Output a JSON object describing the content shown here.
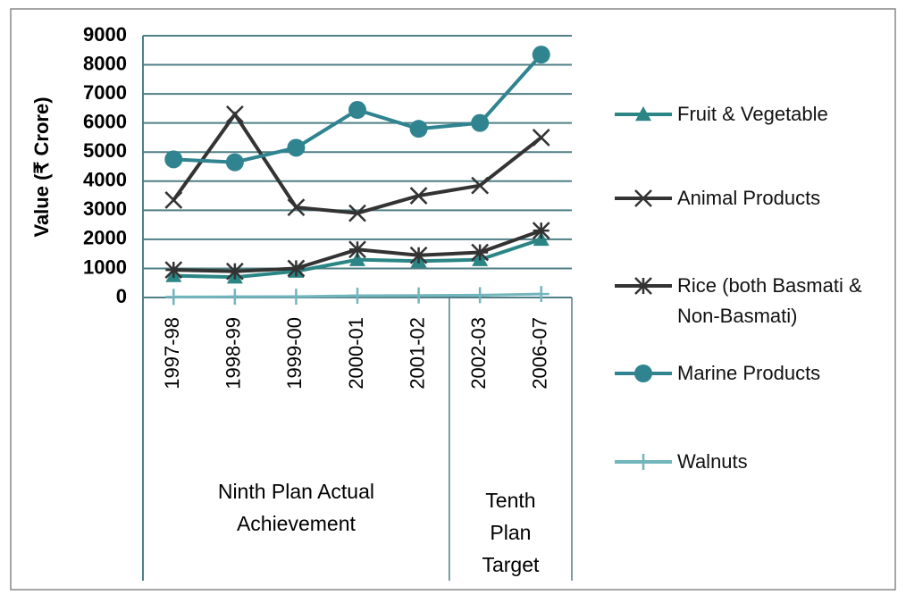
{
  "chart_data": {
    "type": "line",
    "y_label": "Value (₹ Crore)",
    "categories": [
      "1997-98",
      "1998-99",
      "1999-00",
      "2000-01",
      "2001-02",
      "2002-03",
      "2006-07"
    ],
    "groups": [
      {
        "label": [
          "Ninth Plan Actual",
          "Achievement"
        ],
        "count": 5
      },
      {
        "label": [
          "Tenth",
          "Plan",
          "Target"
        ],
        "count": 2
      }
    ],
    "series": [
      {
        "name": "Fruit & Vegetable",
        "color": "#2b8585",
        "marker": "triangle",
        "values": [
          750,
          700,
          900,
          1300,
          1250,
          1300,
          2000
        ]
      },
      {
        "name": "Animal Products",
        "color": "#333333",
        "marker": "x",
        "values": [
          3350,
          6300,
          3100,
          2900,
          3500,
          3850,
          5500
        ]
      },
      {
        "name": "Rice (both Basmati & Non-Basmati)",
        "color": "#333333",
        "marker": "star",
        "values": [
          950,
          900,
          1000,
          1650,
          1450,
          1550,
          2300
        ]
      },
      {
        "name": "Marine Products",
        "color": "#2f8490",
        "marker": "circle",
        "values": [
          4750,
          4650,
          5150,
          6450,
          5800,
          6000,
          8350
        ]
      },
      {
        "name": "Walnuts",
        "color": "#72b5bd",
        "marker": "plus",
        "values": [
          20,
          25,
          30,
          60,
          70,
          80,
          120
        ]
      }
    ],
    "ylim": [
      0,
      9000
    ],
    "yticks": [
      0,
      1000,
      2000,
      3000,
      4000,
      5000,
      6000,
      7000,
      8000,
      9000
    ],
    "grid": true
  }
}
